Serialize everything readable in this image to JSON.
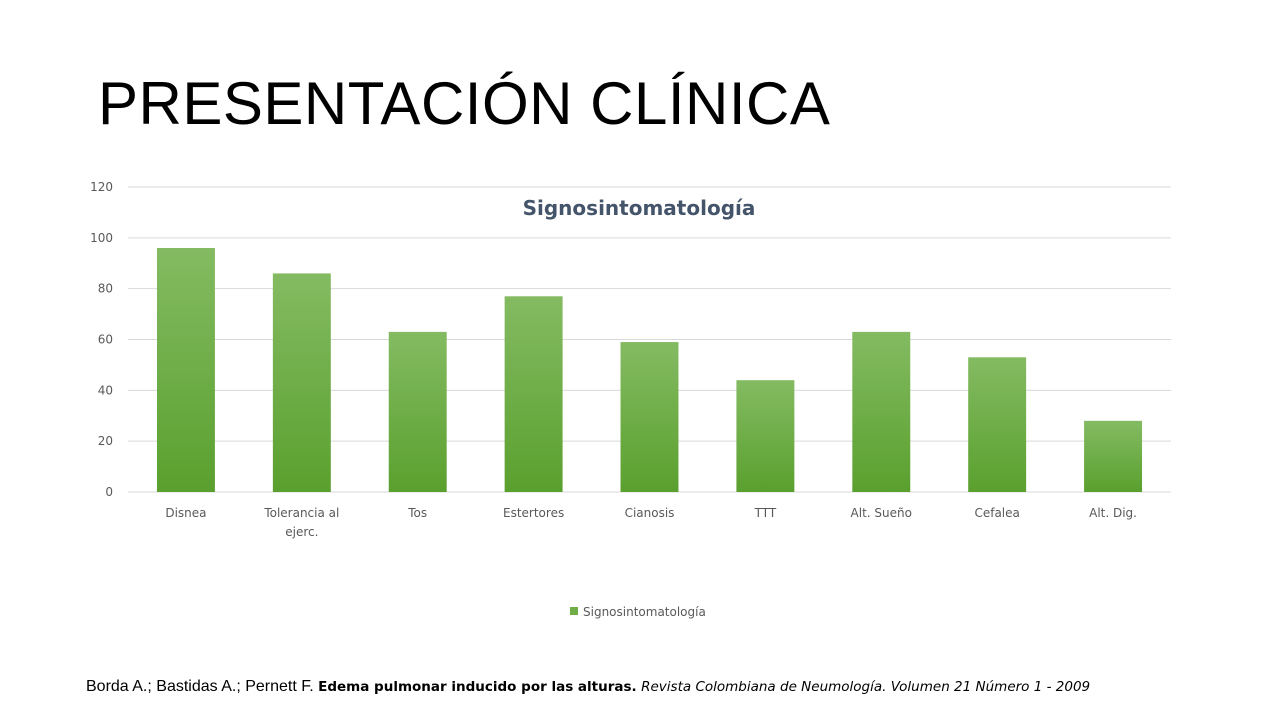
{
  "slide": {
    "title": "PRESENTACIÓN CLÍNICA"
  },
  "citation": {
    "authors": "Borda A.; Bastidas A.; Pernett F.",
    "article": "Edema pulmonar inducido por las alturas.",
    "journal": "Revista Colombiana de Neumología. Volumen 21 Número 1 - 2009"
  },
  "colors": {
    "bar_top": "#84bb62",
    "bar_bottom": "#5aa02e",
    "legend": "#70ad47",
    "grid": "#d9d9d9",
    "title": "#44546a"
  },
  "chart_data": {
    "type": "bar",
    "title": "Signosintomatología",
    "categories": [
      [
        "Disnea"
      ],
      [
        "Tolerancia al",
        "ejerc."
      ],
      [
        "Tos"
      ],
      [
        "Estertores"
      ],
      [
        "Cianosis"
      ],
      [
        "TTT"
      ],
      [
        "Alt. Sueño"
      ],
      [
        "Cefalea"
      ],
      [
        "Alt. Dig."
      ]
    ],
    "series": [
      {
        "name": "Signosintomatología",
        "values": [
          96,
          86,
          63,
          77,
          59,
          44,
          63,
          53,
          28
        ]
      }
    ],
    "ylim": [
      0,
      120
    ],
    "yticks": [
      0,
      20,
      40,
      60,
      80,
      100,
      120
    ],
    "grid": true,
    "legend": "bottom"
  }
}
